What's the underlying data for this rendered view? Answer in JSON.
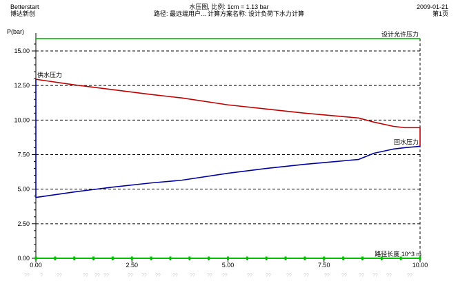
{
  "header": {
    "app_name": "Betterstart",
    "app_sub": "博达新创",
    "title": "水压图, 比例: 1cm = 1.13 bar",
    "subtitle": "路径: 最远端用户... 计算方案名称: 设计负荷下水力计算",
    "date": "2009-01-21",
    "page": "第1页"
  },
  "colors": {
    "design_pressure": "#00c000",
    "supply": "#c00000",
    "return": "#0000a0",
    "grid": "#000000",
    "ghost": "#c8c8c8"
  },
  "ghost_text": [
    "??",
    "?",
    "??",
    "??",
    "??",
    "??",
    "??",
    "??",
    "??",
    "??",
    "??",
    "??",
    "??",
    "??",
    "??",
    "??",
    "??",
    "??",
    "??",
    "??",
    "??",
    "??",
    "??"
  ],
  "chart_data": {
    "type": "line",
    "ylabel": "P(bar)",
    "xlabel": "路径长度 10^3 m",
    "xlim": [
      0,
      10
    ],
    "ylim": [
      0,
      16
    ],
    "xticks": [
      "0.00",
      "2.50",
      "5.00",
      "7.50",
      "10.00"
    ],
    "xtick_values": [
      0,
      2.5,
      5,
      7.5,
      10
    ],
    "yticks": [
      "0.00",
      "2.50",
      "5.00",
      "7.50",
      "10.00",
      "12.50",
      "15.00"
    ],
    "ytick_values": [
      0,
      2.5,
      5,
      7.5,
      10,
      12.5,
      15
    ],
    "grid": true,
    "series": [
      {
        "name": "设计允许压力",
        "color": "#00c000",
        "x": [
          0,
          10
        ],
        "y": [
          15.9,
          15.9
        ]
      },
      {
        "name": "供水压力",
        "color": "#c00000",
        "x": [
          0,
          1.0,
          2.0,
          3.0,
          3.8,
          5.0,
          6.0,
          7.0,
          7.8,
          8.4,
          8.8,
          9.3,
          9.6,
          10.0,
          10.0
        ],
        "y": [
          12.95,
          12.55,
          12.2,
          11.85,
          11.6,
          11.1,
          10.8,
          10.5,
          10.3,
          10.15,
          9.85,
          9.55,
          9.45,
          9.45,
          8.1
        ]
      },
      {
        "name": "回水压力",
        "color": "#0000a0",
        "x": [
          0,
          0,
          1.0,
          2.0,
          3.0,
          3.8,
          5.0,
          6.0,
          7.0,
          7.8,
          8.4,
          8.8,
          9.3,
          9.6,
          10.0
        ],
        "y": [
          12.95,
          4.4,
          4.8,
          5.15,
          5.45,
          5.65,
          6.15,
          6.5,
          6.8,
          7.0,
          7.15,
          7.6,
          7.9,
          8.0,
          8.1
        ]
      },
      {
        "name": "",
        "color": "#00c000",
        "x": [
          0,
          10
        ],
        "y": [
          0,
          0
        ]
      }
    ]
  },
  "labels": {
    "design": "设计允许压力",
    "supply": "供水压力",
    "return": "回水压力"
  }
}
